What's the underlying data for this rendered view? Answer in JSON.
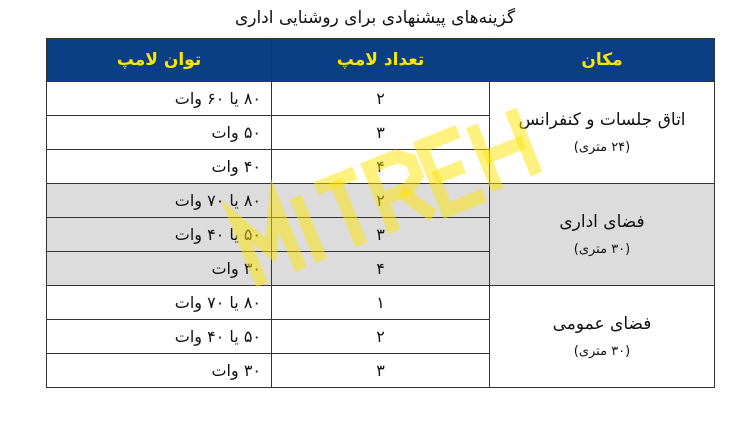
{
  "title": "گزینه‌های پیشنهادی برای روشنایی اداری",
  "headers": {
    "place": "مکان",
    "count": "تعداد لامپ",
    "power": "توان لامپ"
  },
  "groups": [
    {
      "place": "اتاق جلسات و کنفرانس",
      "area": "(۲۴ متری)",
      "rows": [
        {
          "count": "۲",
          "power": "۸۰ یا ۶۰ وات"
        },
        {
          "count": "۳",
          "power": "۵۰ وات"
        },
        {
          "count": "۴",
          "power": "۴۰ وات"
        }
      ]
    },
    {
      "place": "فضای اداری",
      "area": "(۳۰ متری)",
      "rows": [
        {
          "count": "۲",
          "power": "۸۰ یا ۷۰ وات"
        },
        {
          "count": "۳",
          "power": "۵۰ یا ۴۰ وات"
        },
        {
          "count": "۴",
          "power": "۳۰ وات"
        }
      ]
    },
    {
      "place": "فضای عمومی",
      "area": "(۳۰ متری)",
      "rows": [
        {
          "count": "۱",
          "power": "۸۰ یا ۷۰ وات"
        },
        {
          "count": "۲",
          "power": "۵۰ یا ۴۰ وات"
        },
        {
          "count": "۳",
          "power": "۳۰ وات"
        }
      ]
    }
  ],
  "watermark": "MITREH",
  "colors": {
    "header_bg": "#0a3f86",
    "header_text": "#ffe600",
    "shaded_row": "#dcdcdc"
  }
}
